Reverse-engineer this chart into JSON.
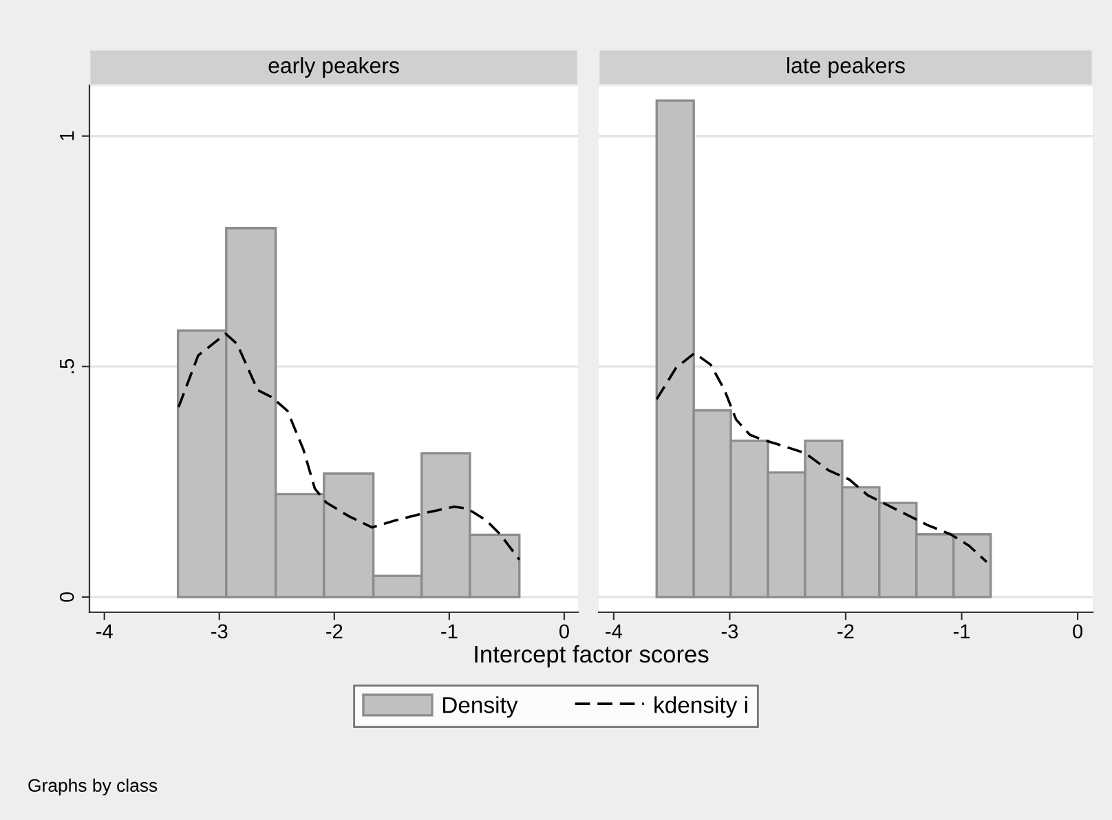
{
  "chart_data": [
    {
      "type": "histogram",
      "title": "early peakers",
      "xlabel": "Intercept factor scores",
      "annotations": [
        "Graphs by class"
      ],
      "xlim": [
        -4.13,
        0.12
      ],
      "ylim": [
        -0.033,
        1.11
      ],
      "xticks": [
        -4,
        -3,
        -2,
        -1,
        0
      ],
      "yticks": [
        0,
        {
          "value": 0.5,
          "label": ".5"
        },
        1
      ],
      "grid": "y",
      "legend": "bottom",
      "series": [
        {
          "name": "Density",
          "color": "#c0c0c0",
          "bins": [
            -3.36,
            -2.94,
            -2.51,
            -2.09,
            -1.66,
            -1.24,
            -0.82,
            -0.39
          ],
          "values": [
            0.578,
            0.8,
            0.223,
            0.268,
            0.046,
            0.312,
            0.135
          ]
        },
        {
          "name": "kdensity i",
          "type": "line",
          "color": "#000000",
          "line_style": "dashed",
          "x": [
            -3.355,
            -3.184,
            -2.945,
            -2.846,
            -2.667,
            -2.547,
            -2.408,
            -2.269,
            -2.169,
            -2.07,
            -1.871,
            -1.672,
            -1.473,
            -1.234,
            -0.955,
            -0.836,
            -0.677,
            -0.557,
            -0.39
          ],
          "values": [
            0.412,
            0.524,
            0.571,
            0.549,
            0.449,
            0.434,
            0.404,
            0.32,
            0.235,
            0.205,
            0.175,
            0.151,
            0.166,
            0.181,
            0.196,
            0.191,
            0.166,
            0.136,
            0.081
          ]
        }
      ]
    },
    {
      "type": "histogram",
      "title": "late peakers",
      "xlim": [
        -4.13,
        0.13
      ],
      "ylim": [
        -0.033,
        1.11
      ],
      "xticks": [
        -4,
        -3,
        -2,
        -1,
        0
      ],
      "yticks": [
        0,
        0.5,
        1
      ],
      "grid": "y",
      "tick_labels": "x",
      "series": [
        {
          "color": "#c0c0c0",
          "bins": [
            -3.63,
            -3.31,
            -2.99,
            -2.67,
            -2.35,
            -2.03,
            -1.71,
            -1.39,
            -1.07,
            -0.75
          ],
          "values": [
            1.077,
            0.405,
            0.339,
            0.27,
            0.339,
            0.238,
            0.204,
            0.136,
            0.136
          ]
        },
        {
          "type": "line",
          "color": "#000000",
          "line_style": "dashed",
          "x": [
            -3.63,
            -3.463,
            -3.303,
            -3.164,
            -3.045,
            -2.945,
            -2.826,
            -2.726,
            -2.567,
            -2.348,
            -2.149,
            -1.97,
            -1.811,
            -1.532,
            -1.294,
            -1.095,
            -0.935,
            -0.784
          ],
          "values": [
            0.429,
            0.497,
            0.529,
            0.504,
            0.449,
            0.385,
            0.352,
            0.342,
            0.33,
            0.312,
            0.275,
            0.255,
            0.221,
            0.186,
            0.156,
            0.136,
            0.111,
            0.076
          ]
        }
      ]
    }
  ]
}
